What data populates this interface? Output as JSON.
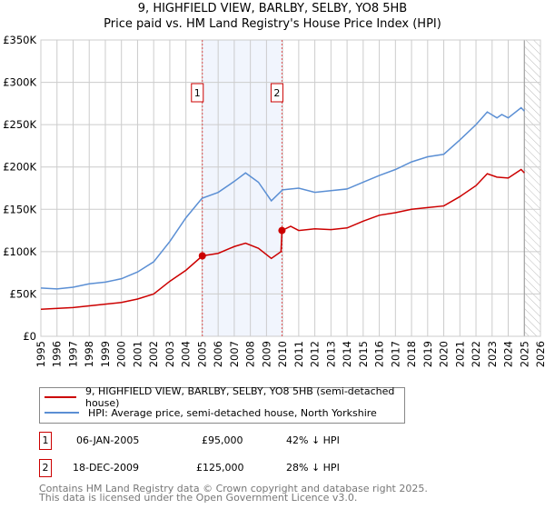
{
  "chart_data": {
    "type": "line",
    "title": "9, HIGHFIELD VIEW, BARLBY, SELBY, YO8 5HB",
    "subtitle": "Price paid vs. HM Land Registry's House Price Index (HPI)",
    "xlim": [
      1995,
      2026
    ],
    "ylim": [
      0,
      350000
    ],
    "y_ticks": [
      0,
      50000,
      100000,
      150000,
      200000,
      250000,
      300000,
      350000
    ],
    "y_tick_labels": [
      "£0",
      "£50K",
      "£100K",
      "£150K",
      "£200K",
      "£250K",
      "£300K",
      "£350K"
    ],
    "x_tick_labels": [
      "1995",
      "1996",
      "1997",
      "1998",
      "1999",
      "2000",
      "2001",
      "2002",
      "2003",
      "2004",
      "2005",
      "2006",
      "2007",
      "2008",
      "2009",
      "2010",
      "2011",
      "2012",
      "2013",
      "2014",
      "2015",
      "2016",
      "2017",
      "2018",
      "2019",
      "2020",
      "2021",
      "2022",
      "2023",
      "2024",
      "2025",
      "2026"
    ],
    "grid": true,
    "shaded_range": [
      2005.02,
      2009.96
    ],
    "hatched_from": 2025.0,
    "series": [
      {
        "name": "9, HIGHFIELD VIEW, BARLBY, SELBY, YO8 5HB (semi-detached house)",
        "color": "#cc0000",
        "x": [
          1995,
          1997,
          1998,
          1999,
          2000,
          2001,
          2002,
          2003,
          2004,
          2005.02,
          2006,
          2007,
          2007.7,
          2008.5,
          2009.3,
          2009.9,
          2009.96,
          2010.5,
          2011,
          2012,
          2013,
          2014,
          2015,
          2016,
          2017,
          2018,
          2019,
          2020,
          2021,
          2022,
          2022.7,
          2023.3,
          2024,
          2024.8,
          2025
        ],
        "values": [
          32000,
          34000,
          36000,
          38000,
          40000,
          44000,
          50000,
          65000,
          78000,
          95000,
          98000,
          106000,
          110000,
          104000,
          92000,
          100000,
          125000,
          130000,
          125000,
          127000,
          126000,
          128000,
          136000,
          143000,
          146000,
          150000,
          152000,
          154000,
          165000,
          178000,
          192000,
          188000,
          187000,
          197000,
          193000
        ]
      },
      {
        "name": "HPI: Average price, semi-detached house, North Yorkshire",
        "color": "#5b8fd4",
        "x": [
          1995,
          1996,
          1997,
          1998,
          1999,
          2000,
          2001,
          2002,
          2003,
          2004,
          2005,
          2006,
          2007,
          2007.7,
          2008.5,
          2009.3,
          2010,
          2011,
          2012,
          2013,
          2014,
          2015,
          2016,
          2017,
          2018,
          2019,
          2020,
          2021,
          2022,
          2022.7,
          2023.3,
          2023.6,
          2024,
          2024.8,
          2025
        ],
        "values": [
          57000,
          56000,
          58000,
          62000,
          64000,
          68000,
          76000,
          88000,
          112000,
          140000,
          163000,
          170000,
          183000,
          193000,
          182000,
          160000,
          173000,
          175000,
          170000,
          172000,
          174000,
          182000,
          190000,
          197000,
          206000,
          212000,
          215000,
          232000,
          250000,
          265000,
          258000,
          262000,
          258000,
          270000,
          266000
        ]
      }
    ],
    "annotations": [
      {
        "label": "1",
        "x": 2005.02,
        "y": 95000
      },
      {
        "label": "2",
        "x": 2009.96,
        "y": 125000
      }
    ]
  },
  "legend": {
    "red": "9, HIGHFIELD VIEW, BARLBY, SELBY, YO8 5HB (semi-detached house)",
    "blue": "HPI: Average price, semi-detached house, North Yorkshire"
  },
  "transactions": [
    {
      "num": "1",
      "date": "06-JAN-2005",
      "price": "£95,000",
      "hpi": "42% ↓ HPI"
    },
    {
      "num": "2",
      "date": "18-DEC-2009",
      "price": "£125,000",
      "hpi": "28% ↓ HPI"
    }
  ],
  "footer": [
    "Contains HM Land Registry data © Crown copyright and database right 2025.",
    "This data is licensed under the Open Government Licence v3.0."
  ]
}
